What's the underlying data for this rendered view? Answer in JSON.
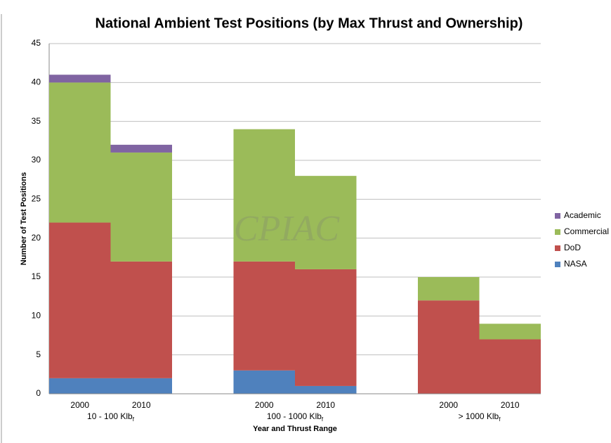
{
  "chart_data": {
    "type": "stacked_bar",
    "title": "National Ambient Test Positions (by Max Thrust and Ownership)",
    "y_label": "Number of Test Positions",
    "x_label": "Year and Thrust Range",
    "watermark": "CPIAC",
    "categories": [
      "2000",
      "2010",
      null,
      "2000",
      "2010",
      null,
      "2000",
      "2010"
    ],
    "groups": [
      {
        "label": "10 - 100 Klb",
        "subscript": "f"
      },
      {
        "label": "100 - 1000 Klb",
        "subscript": "f"
      },
      {
        "label": "> 1000 Klb",
        "subscript": "f"
      }
    ],
    "series": [
      {
        "name": "NASA",
        "color": "#4f81bd",
        "values": [
          2,
          2,
          null,
          3,
          1,
          null,
          0,
          0
        ]
      },
      {
        "name": "DoD",
        "color": "#c0504d",
        "values": [
          20,
          15,
          null,
          14,
          15,
          null,
          12,
          7
        ]
      },
      {
        "name": "Commercial",
        "color": "#9bbb59",
        "values": [
          18,
          14,
          null,
          17,
          12,
          null,
          3,
          2
        ]
      },
      {
        "name": "Academic",
        "color": "#8064a2",
        "values": [
          1,
          1,
          null,
          0,
          0,
          null,
          0,
          0
        ]
      }
    ],
    "ylim": [
      0,
      45
    ],
    "yticks": [
      0,
      5,
      10,
      15,
      20,
      25,
      30,
      35,
      40,
      45
    ],
    "grid": true,
    "legend": "right"
  }
}
